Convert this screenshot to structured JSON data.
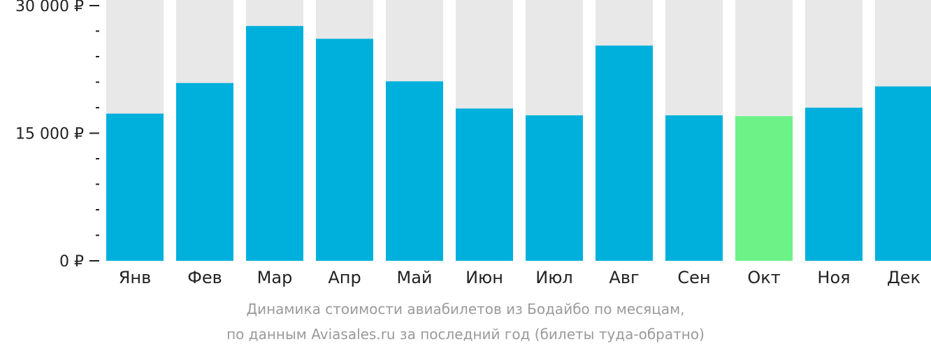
{
  "chart_data": {
    "type": "bar",
    "title": "",
    "xlabel": "",
    "ylabel": "",
    "categories": [
      "Янв",
      "Фев",
      "Мар",
      "Апр",
      "Май",
      "Июн",
      "Июл",
      "Авг",
      "Сен",
      "Окт",
      "Ноя",
      "Дек"
    ],
    "values": [
      17300,
      20900,
      27600,
      26100,
      21100,
      17900,
      17100,
      25300,
      17100,
      17000,
      18000,
      20500
    ],
    "ylim": [
      0,
      30000
    ],
    "yticks": [
      {
        "value": 0,
        "label": "0 ₽"
      },
      {
        "value": 15000,
        "label": "15 000 ₽"
      },
      {
        "value": 30000,
        "label": "30 000 ₽"
      }
    ],
    "minor_tick_step": 3000,
    "highlight_category": "Окт",
    "grid": false,
    "colors": {
      "bar": "#00b0dc",
      "bar_highlight": "#6cf287",
      "bar_background": "#e8e8e8",
      "axis": "#222222"
    }
  },
  "caption": {
    "line1": "Динамика стоимости авиабилетов из Бодайбо по месяцам,",
    "line2": "по данным Aviasales.ru за последний год (билеты туда-обратно)"
  }
}
